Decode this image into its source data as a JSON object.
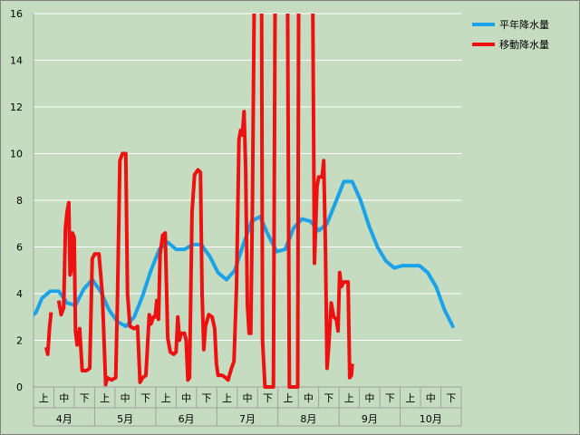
{
  "chart_data": {
    "type": "line",
    "ylim": [
      0,
      16
    ],
    "y_ticks": [
      "0",
      "2",
      "4",
      "6",
      "8",
      "10",
      "12",
      "14",
      "16"
    ],
    "grid": "horizontal",
    "legend_position": "top-right",
    "dekad_labels": [
      "上",
      "中",
      "下",
      "上",
      "中",
      "下",
      "上",
      "中",
      "下",
      "上",
      "中",
      "下",
      "上",
      "中",
      "下",
      "上",
      "中",
      "下",
      "上",
      "中",
      "下"
    ],
    "months": [
      "4月",
      "5月",
      "6月",
      "7月",
      "8月",
      "9月",
      "10月"
    ],
    "series": [
      {
        "name": "平年降水量",
        "color": "#1aa3e8",
        "points": [
          [
            0,
            3.1
          ],
          [
            0.3,
            3.2
          ],
          [
            1,
            3.8
          ],
          [
            2,
            4.1
          ],
          [
            3,
            4.1
          ],
          [
            4,
            3.6
          ],
          [
            5,
            3.5
          ],
          [
            6,
            4.2
          ],
          [
            7,
            4.6
          ],
          [
            8,
            4.1
          ],
          [
            9,
            3.3
          ],
          [
            10,
            2.8
          ],
          [
            11,
            2.6
          ],
          [
            12,
            3.0
          ],
          [
            13,
            3.9
          ],
          [
            14,
            5.0
          ],
          [
            15,
            5.9
          ],
          [
            16,
            6.2
          ],
          [
            17,
            5.9
          ],
          [
            18,
            5.9
          ],
          [
            19,
            6.1
          ],
          [
            20,
            6.1
          ],
          [
            21,
            5.6
          ],
          [
            22,
            4.9
          ],
          [
            23,
            4.6
          ],
          [
            24,
            5.0
          ],
          [
            25,
            6.1
          ],
          [
            26,
            7.1
          ],
          [
            27,
            7.3
          ],
          [
            28,
            6.5
          ],
          [
            29,
            5.8
          ],
          [
            30,
            5.9
          ],
          [
            31,
            6.8
          ],
          [
            32,
            7.2
          ],
          [
            33,
            7.1
          ],
          [
            34,
            6.7
          ],
          [
            35,
            7.0
          ],
          [
            36,
            7.9
          ],
          [
            37,
            8.8
          ],
          [
            38,
            8.8
          ],
          [
            39,
            8.0
          ],
          [
            40,
            6.9
          ],
          [
            41,
            6.0
          ],
          [
            42,
            5.4
          ],
          [
            43,
            5.1
          ],
          [
            44,
            5.2
          ],
          [
            45,
            5.2
          ],
          [
            46,
            5.2
          ],
          [
            47,
            4.9
          ],
          [
            48,
            4.3
          ],
          [
            49,
            3.3
          ],
          [
            50,
            2.6
          ]
        ]
      },
      {
        "name": "移動降水量",
        "color": "#ee1111",
        "segments": [
          [
            [
              1.5,
              1.7
            ],
            [
              1.7,
              1.4
            ],
            [
              1.9,
              2.5
            ],
            [
              2.1,
              3.2
            ]
          ],
          [
            [
              3.0,
              3.7
            ],
            [
              3.3,
              3.1
            ],
            [
              3.6,
              3.4
            ],
            [
              3.8,
              6.8
            ],
            [
              4.0,
              7.5
            ],
            [
              4.2,
              7.9
            ],
            [
              4.35,
              4.8
            ],
            [
              4.5,
              5.0
            ],
            [
              4.65,
              6.6
            ],
            [
              4.85,
              6.4
            ],
            [
              5.0,
              2.4
            ],
            [
              5.2,
              1.8
            ],
            [
              5.5,
              2.5
            ],
            [
              5.8,
              0.7
            ],
            [
              6.3,
              0.7
            ],
            [
              6.7,
              0.8
            ],
            [
              7.0,
              5.5
            ],
            [
              7.3,
              5.7
            ],
            [
              7.8,
              5.7
            ],
            [
              8.2,
              4.0
            ],
            [
              8.6,
              0.1
            ],
            [
              8.8,
              0.4
            ],
            [
              9.3,
              0.3
            ],
            [
              9.8,
              0.4
            ],
            [
              10.0,
              3.5
            ],
            [
              10.3,
              9.7
            ],
            [
              10.6,
              10.0
            ],
            [
              11.0,
              10.0
            ],
            [
              11.2,
              4.0
            ],
            [
              11.5,
              2.6
            ],
            [
              12.0,
              2.5
            ],
            [
              12.4,
              2.6
            ],
            [
              12.7,
              0.2
            ],
            [
              13.0,
              0.4
            ],
            [
              13.4,
              0.5
            ],
            [
              13.8,
              3.1
            ],
            [
              14.0,
              2.7
            ],
            [
              14.3,
              3.0
            ],
            [
              14.5,
              3.0
            ],
            [
              14.7,
              3.7
            ],
            [
              14.9,
              2.9
            ],
            [
              15.1,
              5.7
            ],
            [
              15.4,
              6.5
            ],
            [
              15.7,
              6.6
            ],
            [
              16.0,
              2.1
            ],
            [
              16.3,
              1.5
            ],
            [
              16.7,
              1.4
            ],
            [
              17.0,
              1.5
            ],
            [
              17.2,
              3.0
            ],
            [
              17.4,
              2.0
            ],
            [
              17.6,
              2.3
            ],
            [
              18.0,
              2.3
            ],
            [
              18.2,
              2.0
            ],
            [
              18.4,
              0.3
            ],
            [
              18.6,
              0.4
            ],
            [
              18.9,
              7.5
            ],
            [
              19.2,
              9.1
            ],
            [
              19.6,
              9.3
            ],
            [
              19.9,
              9.2
            ],
            [
              20.1,
              4.0
            ],
            [
              20.3,
              1.6
            ],
            [
              20.5,
              2.6
            ],
            [
              20.9,
              3.1
            ],
            [
              21.3,
              3.0
            ],
            [
              21.6,
              2.5
            ],
            [
              21.8,
              1.0
            ],
            [
              22.0,
              0.5
            ],
            [
              22.5,
              0.5
            ],
            [
              22.9,
              0.4
            ],
            [
              23.2,
              0.3
            ],
            [
              23.6,
              0.8
            ],
            [
              23.9,
              1.1
            ],
            [
              24.2,
              4.3
            ],
            [
              24.5,
              10.6
            ],
            [
              24.7,
              11.0
            ],
            [
              24.9,
              10.8
            ],
            [
              25.1,
              11.8
            ],
            [
              25.3,
              9.3
            ],
            [
              25.5,
              3.5
            ],
            [
              25.7,
              2.3
            ],
            [
              25.9,
              2.3
            ],
            [
              26.1,
              8.0
            ],
            [
              26.3,
              16.0
            ]
          ],
          [
            [
              27.2,
              16.0
            ],
            [
              27.3,
              2.0
            ],
            [
              27.6,
              0.0
            ],
            [
              28.6,
              0.0
            ],
            [
              28.8,
              16.0
            ]
          ],
          [
            [
              30.3,
              16.0
            ],
            [
              30.5,
              0.0
            ],
            [
              31.5,
              0.0
            ],
            [
              31.6,
              16.0
            ]
          ],
          [
            [
              33.3,
              16.0
            ],
            [
              33.5,
              5.3
            ],
            [
              33.8,
              8.6
            ],
            [
              34.0,
              9.0
            ],
            [
              34.4,
              9.0
            ],
            [
              34.6,
              9.7
            ],
            [
              34.8,
              6.0
            ],
            [
              35.0,
              0.8
            ],
            [
              35.2,
              1.8
            ],
            [
              35.5,
              3.6
            ],
            [
              35.8,
              3.0
            ],
            [
              36.1,
              2.9
            ],
            [
              36.3,
              2.4
            ],
            [
              36.5,
              4.9
            ],
            [
              36.7,
              4.3
            ],
            [
              37.0,
              4.5
            ],
            [
              37.5,
              4.5
            ],
            [
              37.7,
              0.4
            ],
            [
              37.9,
              0.5
            ],
            [
              38.0,
              1.0
            ]
          ]
        ]
      }
    ]
  }
}
